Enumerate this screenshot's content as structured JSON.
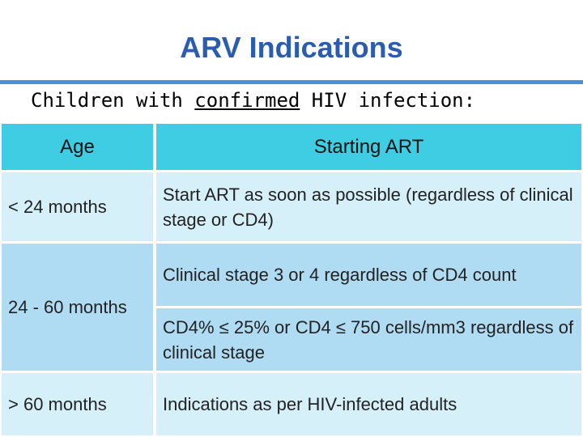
{
  "slide": {
    "title": "ARV Indications",
    "subtitle_prefix": "Children with ",
    "subtitle_underlined": "confirmed",
    "subtitle_suffix": " HIV infection:"
  },
  "table": {
    "headers": {
      "age": "Age",
      "starting": "Starting ART"
    },
    "rows": [
      {
        "age": "< 24 months",
        "criteria": [
          "Start ART as soon as possible (regardless of clinical stage or CD4)"
        ]
      },
      {
        "age": "24 - 60 months",
        "criteria": [
          "Clinical stage 3 or 4 regardless of CD4 count",
          "CD4% ≤ 25% or CD4 ≤ 750 cells/mm3 regardless of clinical stage"
        ]
      },
      {
        "age": "> 60 months",
        "criteria": [
          "Indications as per HIV-infected adults"
        ]
      }
    ]
  }
}
